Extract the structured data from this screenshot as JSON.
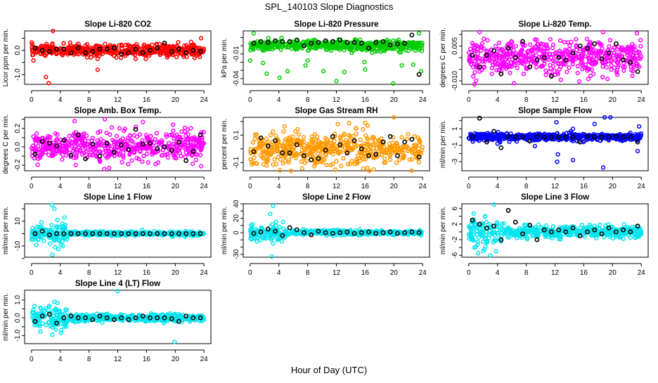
{
  "chart_data": {
    "type": "scatter",
    "title": "SPL_140103  Slope Diagnostics",
    "xlabel": "Hour of Day (UTC)",
    "xlim": [
      0,
      24
    ],
    "xticks": [
      0,
      4,
      8,
      12,
      16,
      20,
      24
    ],
    "xticklabels": [
      "0",
      "4",
      "8",
      "12",
      "16",
      "20",
      "24"
    ],
    "mean_color": "#000000",
    "mean_hours": [
      0.5,
      1.5,
      2.5,
      3.5,
      4.5,
      5.5,
      6.5,
      7.5,
      8.5,
      9.5,
      10.5,
      11.5,
      12.5,
      13.5,
      14.5,
      15.5,
      16.5,
      17.5,
      18.5,
      19.5,
      20.5,
      21.5,
      22.5,
      23.5
    ],
    "panels": [
      {
        "title": "Slope Li-820 CO2",
        "ylabel": "Licor ppm per min.",
        "color": "#ff0000",
        "ylim": [
          -1.4,
          0.8
        ],
        "yticks": [
          0.5,
          0.0,
          -0.5,
          -1.0
        ],
        "yticklabels": [
          "",
          "0.0",
          "",
          "-1.0"
        ],
        "spread": 0.12,
        "early_spread": 0.12,
        "means": [
          0.1,
          0.0,
          -0.05,
          0.05,
          0.05,
          -0.1,
          0.1,
          -0.1,
          -0.05,
          0.05,
          0.05,
          0.1,
          -0.15,
          -0.1,
          0.05,
          -0.1,
          0.0,
          0.1,
          0.3,
          -0.05,
          0.05,
          -0.1,
          0.0,
          -0.05
        ],
        "outliers": [
          [
            2.0,
            -1.1
          ],
          [
            2.4,
            -1.35
          ],
          [
            3.0,
            0.8
          ],
          [
            9.2,
            -0.8
          ],
          [
            9.2,
            -0.35
          ],
          [
            15.9,
            -0.35
          ],
          [
            23.6,
            0.5
          ]
        ]
      },
      {
        "title": "Slope Li-820 Pressure",
        "ylabel": "kPa per min.",
        "color": "#00cc00",
        "ylim": [
          -0.047,
          0.018
        ],
        "yticks": [
          0.01,
          0.0,
          -0.01,
          -0.02,
          -0.03,
          -0.04
        ],
        "yticklabels": [
          "",
          "",
          "-0.01",
          "",
          "",
          "-0.04"
        ],
        "spread": 0.003,
        "early_spread": 0.003,
        "means": [
          0.003,
          0.005,
          0.004,
          0.006,
          0.005,
          0.005,
          0.007,
          0.0,
          0.003,
          0.004,
          0.006,
          0.005,
          0.007,
          0.004,
          0.004,
          0.003,
          -0.003,
          0.004,
          0.005,
          0.001,
          0.002,
          0.003,
          0.013,
          -0.035
        ],
        "outliers": [
          [
            0.0,
            -0.018
          ],
          [
            0.5,
            0.015
          ],
          [
            1.8,
            -0.021
          ],
          [
            2.3,
            -0.034
          ],
          [
            4.1,
            -0.039
          ],
          [
            5.2,
            -0.031
          ],
          [
            7.7,
            -0.024
          ],
          [
            8.0,
            -0.018
          ],
          [
            10.2,
            -0.031
          ],
          [
            12.0,
            -0.043
          ],
          [
            13.1,
            -0.032
          ],
          [
            15.9,
            -0.02
          ],
          [
            16.0,
            -0.029
          ],
          [
            19.9,
            -0.046
          ],
          [
            21.1,
            -0.024
          ],
          [
            22.7,
            -0.023
          ],
          [
            23.5,
            0.015
          ],
          [
            23.8,
            -0.031
          ]
        ]
      },
      {
        "title": "Slope Li-820 Temp.",
        "ylabel": "degrees C per min.",
        "color": "#ff00ff",
        "ylim": [
          -0.0115,
          0.0115
        ],
        "yticks": [
          0.01,
          0.005,
          0.0,
          -0.005,
          -0.01
        ],
        "yticklabels": [
          "",
          "0.005",
          "",
          "",
          "-0.010"
        ],
        "spread": 0.0035,
        "early_spread": 0.0035,
        "means": [
          0.001,
          -0.004,
          0.001,
          0.003,
          -0.007,
          0.004,
          0.0,
          0.007,
          -0.004,
          -0.001,
          0.0,
          -0.008,
          0.0,
          -0.001,
          0.002,
          0.005,
          0.004,
          0.006,
          -0.0005,
          0.002,
          0.006,
          -0.001,
          -0.002,
          -0.006
        ],
        "outliers": [
          [
            1.5,
            0.011
          ],
          [
            6.3,
            -0.011
          ],
          [
            12.8,
            -0.0095
          ],
          [
            18.7,
            0.011
          ],
          [
            23.4,
            0.0105
          ]
        ]
      },
      {
        "title": "Slope Amb. Box Temp.",
        "ylabel": "degrees C per min.",
        "color": "#ff00ff",
        "ylim": [
          -0.26,
          0.32
        ],
        "yticks": [
          0.3,
          0.2,
          0.1,
          0.0,
          -0.1,
          -0.2
        ],
        "yticklabels": [
          "",
          "0.2",
          "",
          "0.0",
          "",
          "-0.2"
        ],
        "spread": 0.08,
        "early_spread": 0.08,
        "means": [
          -0.08,
          0.06,
          0.04,
          0.01,
          0.07,
          -0.09,
          0.13,
          -0.13,
          0.03,
          -0.1,
          0.04,
          -0.06,
          0.02,
          -0.03,
          0.19,
          0.03,
          0.04,
          -0.02,
          0.0,
          -0.04,
          0.05,
          -0.15,
          -0.05,
          0.13
        ],
        "outliers": [
          [
            6.0,
            0.28
          ],
          [
            10.2,
            0.3
          ],
          [
            10.8,
            -0.23
          ],
          [
            15.5,
            0.27
          ],
          [
            19.7,
            0.24
          ],
          [
            23.6,
            -0.21
          ]
        ]
      },
      {
        "title": "Slope Gas Stream RH",
        "ylabel": "percent per min.",
        "color": "#ff9900",
        "ylim": [
          -0.16,
          0.23
        ],
        "yticks": [
          0.2,
          0.1,
          0.0,
          -0.1
        ],
        "yticklabels": [
          "",
          "0.1",
          "",
          "-0.1"
        ],
        "spread": 0.06,
        "early_spread": 0.06,
        "means": [
          -0.02,
          0.08,
          0.02,
          0.06,
          -0.03,
          -0.03,
          0.03,
          -0.05,
          -0.08,
          -0.07,
          -0.01,
          0.09,
          0.03,
          -0.03,
          0.06,
          0.0,
          -0.05,
          -0.04,
          0.05,
          0.09,
          -0.05,
          0.05,
          0.07,
          -0.06
        ],
        "outliers": [
          [
            12.2,
            0.18
          ],
          [
            16.0,
            0.19
          ],
          [
            17.2,
            -0.15
          ],
          [
            20.0,
            0.23
          ]
        ]
      },
      {
        "title": "Slope Sample Flow",
        "ylabel": "ml/min per min.",
        "color": "#0000ff",
        "ylim": [
          -4.1,
          2.4
        ],
        "yticks": [
          2,
          1,
          0,
          -1,
          -2,
          -3
        ],
        "yticklabels": [
          "",
          "1",
          "",
          "-1",
          "",
          "-3"
        ],
        "spread": 0.2,
        "early_spread": 0.25,
        "means": [
          0.0,
          2.3,
          -0.6,
          0.7,
          -1.3,
          0.1,
          0.0,
          0.0,
          -0.5,
          0.1,
          0.0,
          0.0,
          0.0,
          0.0,
          0.0,
          -0.6,
          0.1,
          0.0,
          0.0,
          0.0,
          0.1,
          0.0,
          0.0,
          -0.6
        ],
        "outliers": [
          [
            12.2,
            1.8
          ],
          [
            12.3,
            -3.0
          ],
          [
            12.4,
            -2.1
          ],
          [
            14.5,
            -2.8
          ],
          [
            14.5,
            1.0
          ],
          [
            17.5,
            1.6
          ],
          [
            18.7,
            -3.7
          ],
          [
            18.9,
            2.4
          ],
          [
            19.7,
            2.4
          ],
          [
            23.7,
            1.3
          ],
          [
            23.5,
            -1.7
          ],
          [
            4.0,
            -0.8
          ],
          [
            9.2,
            -1.1
          ]
        ]
      },
      {
        "title": "Slope Line 1 Flow",
        "ylabel": "ml/min per min.",
        "color": "#00e5ee",
        "ylim": [
          -19,
          24
        ],
        "yticks": [
          20,
          10,
          0,
          -10,
          -20
        ],
        "yticklabels": [
          "",
          "10",
          "",
          "-10",
          ""
        ],
        "spread": 0.8,
        "early_spread": 4,
        "means": [
          0,
          2,
          -1,
          0,
          0,
          0,
          0,
          0,
          0,
          0,
          0,
          0,
          0,
          0,
          0,
          0,
          0,
          0,
          0,
          0,
          0,
          0,
          0,
          0
        ],
        "outliers": [
          [
            2.8,
            23
          ],
          [
            3.2,
            20
          ],
          [
            3.6,
            11
          ],
          [
            4.6,
            13
          ],
          [
            4.3,
            8
          ],
          [
            2.9,
            -17
          ],
          [
            3.3,
            -11
          ],
          [
            4.1,
            -9
          ],
          [
            2.6,
            -8
          ],
          [
            0.4,
            -4
          ]
        ]
      },
      {
        "title": "Slope Line 2 Flow",
        "ylabel": "ml/min per min.",
        "color": "#00e5ee",
        "ylim": [
          -34,
          40
        ],
        "yticks": [
          40,
          30,
          20,
          10,
          0,
          -10,
          -20,
          -30
        ],
        "yticklabels": [
          "40",
          "",
          "20",
          "",
          "0",
          "",
          "",
          "-30"
        ],
        "spread": 1.5,
        "early_spread": 6,
        "means": [
          -1,
          1,
          5,
          2,
          -4,
          7,
          4,
          0,
          -3,
          2,
          0,
          -1,
          0,
          1,
          -1,
          0,
          1,
          -1,
          0,
          1,
          -1,
          0,
          1,
          0
        ],
        "outliers": [
          [
            3.2,
            37
          ],
          [
            2.8,
            26
          ],
          [
            3.6,
            15
          ],
          [
            4.6,
            15
          ],
          [
            3.2,
            -15
          ],
          [
            3.0,
            -33
          ],
          [
            3.8,
            -10
          ],
          [
            4.4,
            -12
          ]
        ]
      },
      {
        "title": "Slope Line 3 Flow",
        "ylabel": "ml/min per min.",
        "color": "#00e5ee",
        "ylim": [
          -6.5,
          7.2
        ],
        "yticks": [
          6,
          4,
          2,
          0,
          -2,
          -4,
          -6
        ],
        "yticklabels": [
          "6",
          "",
          "2",
          "",
          "-2",
          "",
          "-6"
        ],
        "spread": 0.7,
        "early_spread": 2,
        "means": [
          3,
          2,
          1,
          1.5,
          -2,
          5.5,
          2.5,
          -0.5,
          1.7,
          -2,
          0.5,
          0,
          0.5,
          0,
          1,
          -1,
          0,
          0.5,
          -0.5,
          1,
          0,
          0.5,
          0,
          1.5
        ],
        "outliers": [
          [
            3.0,
            -6
          ],
          [
            3.8,
            -5
          ],
          [
            1.3,
            -5.5
          ],
          [
            3.5,
            7
          ],
          [
            0.8,
            -4
          ],
          [
            2.2,
            -4.5
          ]
        ]
      },
      {
        "title": "Slope Line 4 (LT) Flow",
        "ylabel": "ml/min per min.",
        "color": "#00e5ee",
        "ylim": [
          -1.45,
          1.55
        ],
        "yticks": [
          1.0,
          0.5,
          0.0,
          -0.5,
          -1.0
        ],
        "yticklabels": [
          "1.0",
          "",
          "0.0",
          "",
          "-1.0"
        ],
        "spread": 0.1,
        "early_spread": 0.3,
        "means": [
          -0.2,
          0.1,
          0.2,
          -0.3,
          0.0,
          0.1,
          0.0,
          0.0,
          -0.1,
          0.1,
          0.0,
          -0.1,
          0.0,
          -0.1,
          0.0,
          0.1,
          0.0,
          0.0,
          0.0,
          -0.05,
          -0.2,
          0.1,
          0.0,
          0.0
        ],
        "outliers": [
          [
            12.0,
            1.5
          ],
          [
            19.9,
            -1.35
          ],
          [
            3.2,
            0.9
          ],
          [
            2.9,
            -0.95
          ],
          [
            4.1,
            -0.85
          ]
        ]
      }
    ]
  }
}
